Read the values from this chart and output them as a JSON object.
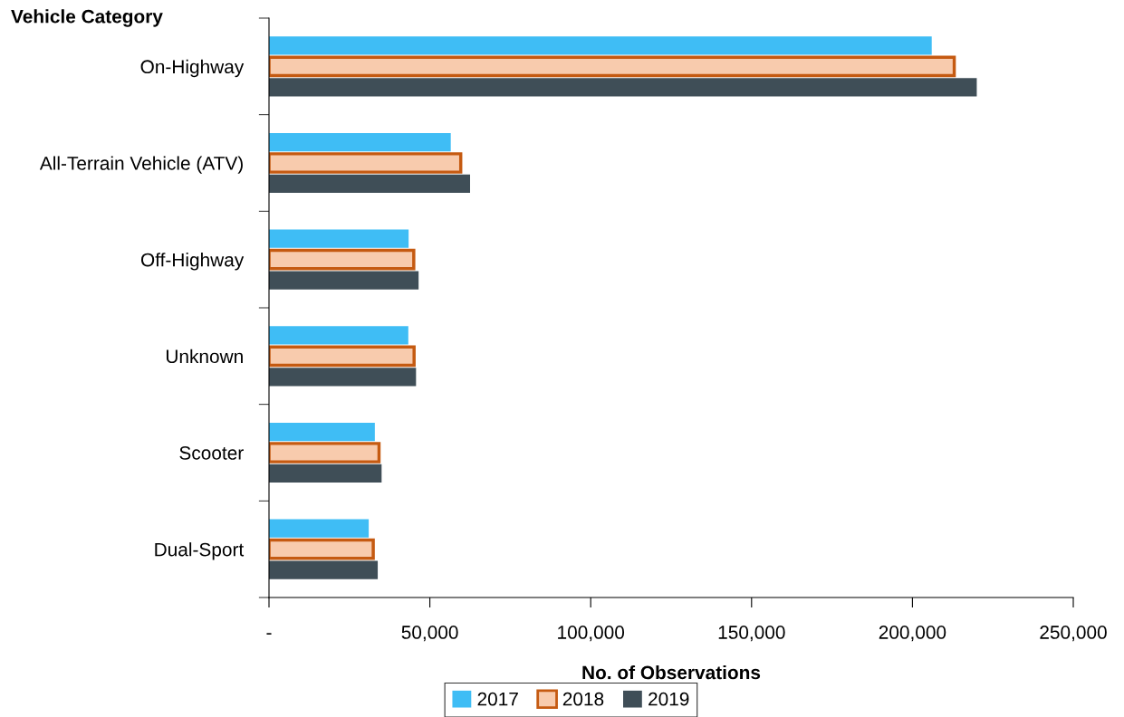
{
  "chart_data": {
    "type": "bar",
    "orientation": "horizontal",
    "ylabel": "Vehicle Category",
    "xlabel": "No. of Observations",
    "categories": [
      "On-Highway",
      "All-Terrain Vehicle (ATV)",
      "Off-Highway",
      "Unknown",
      "Scooter",
      "Dual-Sport"
    ],
    "series": [
      {
        "name": "2017",
        "color": "#3fbdf5",
        "values": [
          206000,
          56500,
          43400,
          43300,
          32900,
          31000
        ]
      },
      {
        "name": "2018",
        "color": "#f8cbad",
        "values": [
          213000,
          59600,
          45000,
          45100,
          34200,
          32400
        ]
      },
      {
        "name": "2019",
        "color": "#3f4e57",
        "values": [
          220000,
          62500,
          46500,
          45700,
          35000,
          33800
        ]
      }
    ],
    "xlim": [
      0,
      250000
    ],
    "xticks": [
      {
        "value": 0,
        "label": "-"
      },
      {
        "value": 50000,
        "label": "50,000"
      },
      {
        "value": 100000,
        "label": "100,000"
      },
      {
        "value": 150000,
        "label": "150,000"
      },
      {
        "value": 200000,
        "label": "200,000"
      },
      {
        "value": 250000,
        "label": "250,000"
      }
    ],
    "grid": false,
    "legend": "bottom"
  }
}
